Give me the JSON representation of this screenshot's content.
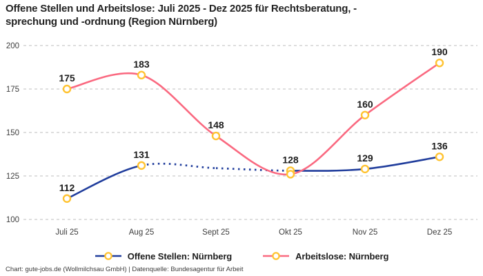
{
  "header": {
    "title_line1": "Offene Stellen und Arbeitslose: Juli 2025 - Dez 2025 für Rechtsberatung, -",
    "title_line2": "sprechung und -ordnung (Region Nürnberg)"
  },
  "chart_data": {
    "type": "line",
    "title": "Offene Stellen und Arbeitslose: Juli 2025 - Dez 2025 für Rechtsberatung, -sprechung und -ordnung (Region Nürnberg)",
    "categories": [
      "Juli 25",
      "Aug 25",
      "Sept 25",
      "Okt 25",
      "Nov 25",
      "Dez 25"
    ],
    "series": [
      {
        "name": "Offene Stellen: Nürnberg",
        "color": "#203d9c",
        "values": [
          112,
          131,
          null,
          128,
          129,
          136
        ],
        "labels": [
          "112",
          "131",
          "",
          "128",
          "129",
          "136"
        ],
        "gap_style": "dotted"
      },
      {
        "name": "Arbeitslose: Nürnberg",
        "color": "#fa6980",
        "values": [
          175,
          183,
          148,
          126,
          160,
          190
        ],
        "labels": [
          "175",
          "183",
          "148",
          "",
          "160",
          "190"
        ]
      }
    ],
    "marker": {
      "fill": "#ffffff",
      "stroke": "#ffc331"
    },
    "yticks": [
      "100",
      "125",
      "150",
      "175",
      "200"
    ],
    "ylim": [
      100,
      200
    ],
    "grid": true,
    "gridline_color": "#cbcbcb",
    "axis_text_color": "#3d3d3d",
    "data_label_color": "#1c1c1c",
    "legend_position": "bottom"
  },
  "legend": {
    "items": [
      {
        "label": "Offene Stellen: Nürnberg",
        "color": "#203d9c"
      },
      {
        "label": "Arbeitslose: Nürnberg",
        "color": "#fa6980"
      }
    ]
  },
  "footer": {
    "text": "Chart: gute-jobs.de (Wollmilchsau GmbH) | Datenquelle: Bundesagentur für Arbeit"
  }
}
